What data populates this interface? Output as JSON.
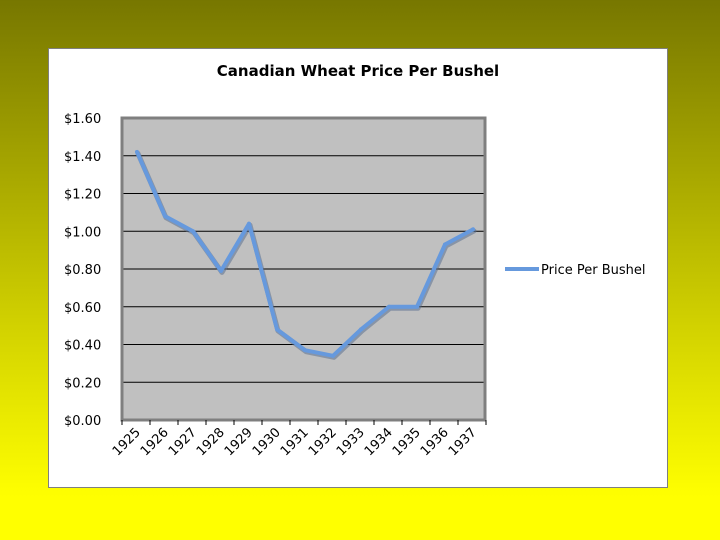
{
  "chart_data": {
    "type": "line",
    "title": "Canadian Wheat Price Per Bushel",
    "xlabel": "",
    "ylabel": "",
    "categories": [
      "1925",
      "1926",
      "1927",
      "1928",
      "1929",
      "1930",
      "1931",
      "1932",
      "1933",
      "1934",
      "1935",
      "1936",
      "1937"
    ],
    "ylim": [
      0,
      1.6
    ],
    "yticks": [
      "$0.00",
      "$0.20",
      "$0.40",
      "$0.60",
      "$0.80",
      "$1.00",
      "$1.20",
      "$1.40",
      "$1.60"
    ],
    "series": [
      {
        "name": "Price Per Bushel",
        "values": [
          1.42,
          1.08,
          1.0,
          0.79,
          1.04,
          0.48,
          0.37,
          0.34,
          0.48,
          0.6,
          0.6,
          0.93,
          1.01
        ]
      }
    ],
    "grid": "horizontal",
    "legend_position": "right",
    "colors": {
      "plot_background": "#c0c0c0",
      "plot_border": "#7f7f7f",
      "line": "#6699dd",
      "slide_background_top": "#777700",
      "slide_background_bottom": "#ffff00"
    }
  }
}
